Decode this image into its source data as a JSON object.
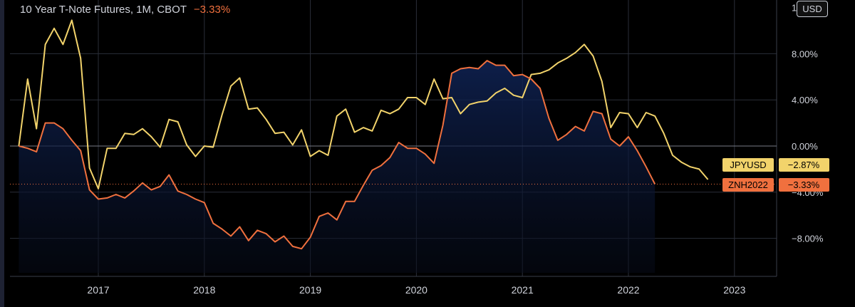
{
  "header": {
    "title": "10 Year T-Note Futures, 1M, CBOT",
    "change": "−3.33%"
  },
  "currency_button": "USD",
  "colors": {
    "background": "#000000",
    "jpyusd": "#f2d36b",
    "znh2022": "#f0703e",
    "grid": "#2a2e39",
    "zero_line": "#787b86",
    "area_fill": "#0b1a3c"
  },
  "y_ticks": [
    "1",
    "8.00%",
    "4.00%",
    "0.00%",
    "−4.00%",
    "−8.00%"
  ],
  "x_ticks": [
    "2017",
    "2018",
    "2019",
    "2020",
    "2021",
    "2022",
    "2023"
  ],
  "badges": [
    {
      "name": "JPYUSD",
      "value": "−2.87%"
    },
    {
      "name": "ZNH2022",
      "value": "−3.33%"
    }
  ],
  "chart_data": {
    "type": "line",
    "ylim": [
      -11.3,
      12.6
    ],
    "xlim": [
      2016.25,
      2023.25
    ],
    "x_start": 2016.25,
    "x_step": 0.083333,
    "grid": true,
    "series": [
      {
        "name": "JPYUSD",
        "values": [
          0,
          5.8,
          1.5,
          8.8,
          10.2,
          8.8,
          10.9,
          7.6,
          -1.9,
          -3.7,
          -0.2,
          -0.2,
          1.1,
          1.0,
          1.5,
          0.8,
          -0.1,
          2.3,
          2.1,
          0.1,
          -0.9,
          0,
          -0.1,
          2.7,
          5.2,
          5.9,
          3.2,
          3.3,
          2.3,
          1.1,
          1.2,
          0.1,
          1.4,
          -0.9,
          -0.4,
          -0.8,
          2.6,
          3.2,
          1.2,
          1.6,
          1.3,
          3.1,
          2.8,
          3.2,
          4.2,
          4.2,
          3.6,
          5.8,
          4.1,
          4.2,
          2.8,
          3.6,
          3.8,
          3.9,
          4.6,
          5.0,
          4.4,
          4.2,
          6.2,
          6.3,
          6.6,
          7.2,
          7.6,
          8.1,
          8.8,
          7.8,
          5.6,
          1.6,
          2.9,
          2.8,
          1.6,
          2.9,
          2.6,
          1.1,
          -0.8,
          -1.4,
          -1.8,
          -2.0,
          -2.9
        ]
      },
      {
        "name": "ZNH2022",
        "values": [
          0,
          -0.2,
          -0.5,
          2.0,
          2.0,
          1.5,
          0.5,
          -0.4,
          -3.8,
          -4.6,
          -4.5,
          -4.2,
          -4.5,
          -3.9,
          -3.2,
          -3.8,
          -3.5,
          -2.5,
          -3.9,
          -4.2,
          -4.6,
          -4.9,
          -6.7,
          -7.2,
          -7.8,
          -7.0,
          -8.2,
          -7.3,
          -7.6,
          -8.3,
          -7.8,
          -8.7,
          -8.9,
          -7.9,
          -6.1,
          -5.8,
          -6.4,
          -4.8,
          -4.8,
          -3.4,
          -2.1,
          -1.7,
          -1.0,
          0.3,
          -0.2,
          -0.2,
          -0.7,
          -1.5,
          1.8,
          6.3,
          6.7,
          6.8,
          6.7,
          7.4,
          7.0,
          7.0,
          6.1,
          6.2,
          5.8,
          5.0,
          2.4,
          0.5,
          1.0,
          1.7,
          1.3,
          3.0,
          2.8,
          0.6,
          0.0,
          0.8,
          -0.4,
          -1.8,
          -3.3
        ]
      }
    ]
  }
}
